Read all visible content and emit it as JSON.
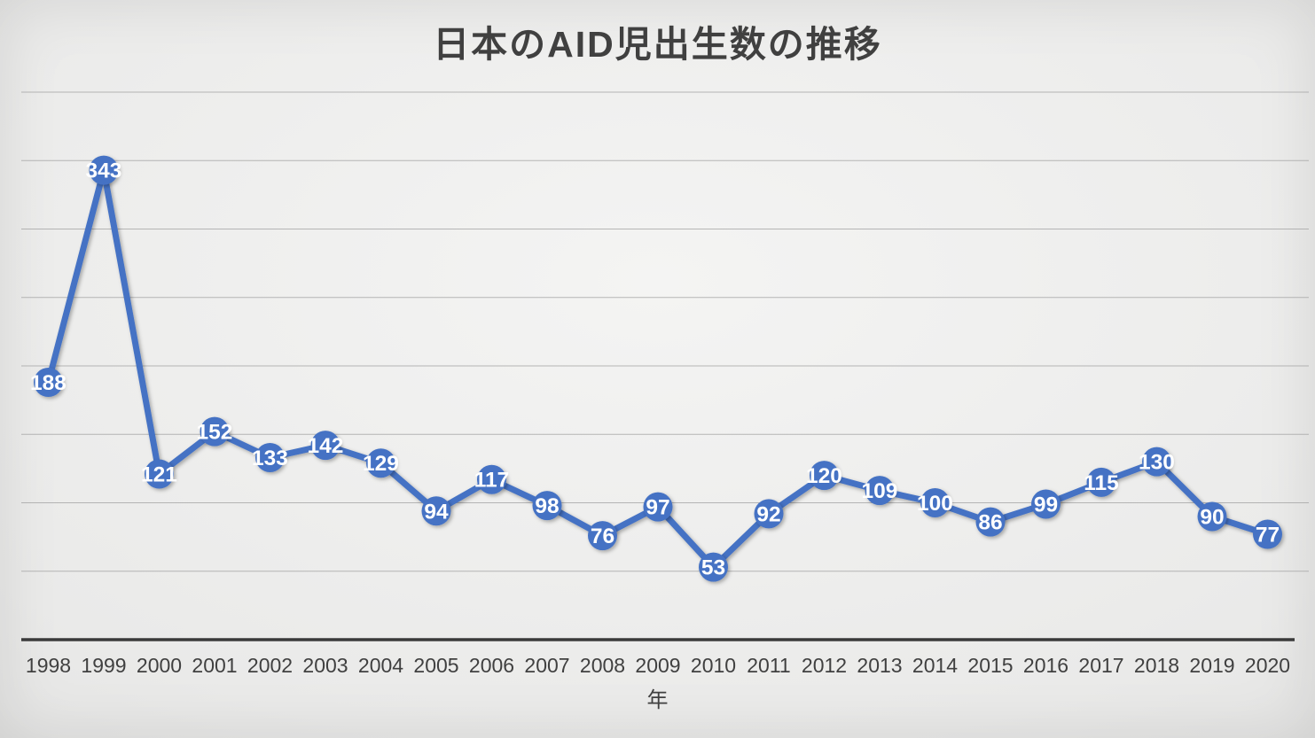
{
  "chart_data": {
    "type": "line",
    "title": "日本のAID児出生数の推移",
    "xlabel": "年",
    "ylabel": "",
    "categories": [
      "1998",
      "1999",
      "2000",
      "2001",
      "2002",
      "2003",
      "2004",
      "2005",
      "2006",
      "2007",
      "2008",
      "2009",
      "2010",
      "2011",
      "2012",
      "2013",
      "2014",
      "2015",
      "2016",
      "2017",
      "2018",
      "2019",
      "2020"
    ],
    "values": [
      188,
      343,
      121,
      152,
      133,
      142,
      129,
      94,
      117,
      98,
      76,
      97,
      53,
      92,
      120,
      109,
      100,
      86,
      99,
      115,
      130,
      90,
      77
    ],
    "ylim": [
      0,
      400
    ],
    "gridline_interval": 50,
    "grid": true,
    "y_axis_labels_visible": false,
    "legend_position": "none",
    "data_label_position": "center",
    "colors": {
      "line": "#4472C4",
      "marker_fill": "#4472C4",
      "data_label_text": "#FFFFFF",
      "gridline": "#A6A6A6",
      "axis_line": "#3A3A3A",
      "tick_label": "#404040",
      "title_text": "#404040",
      "axis_title_text": "#404040"
    }
  }
}
